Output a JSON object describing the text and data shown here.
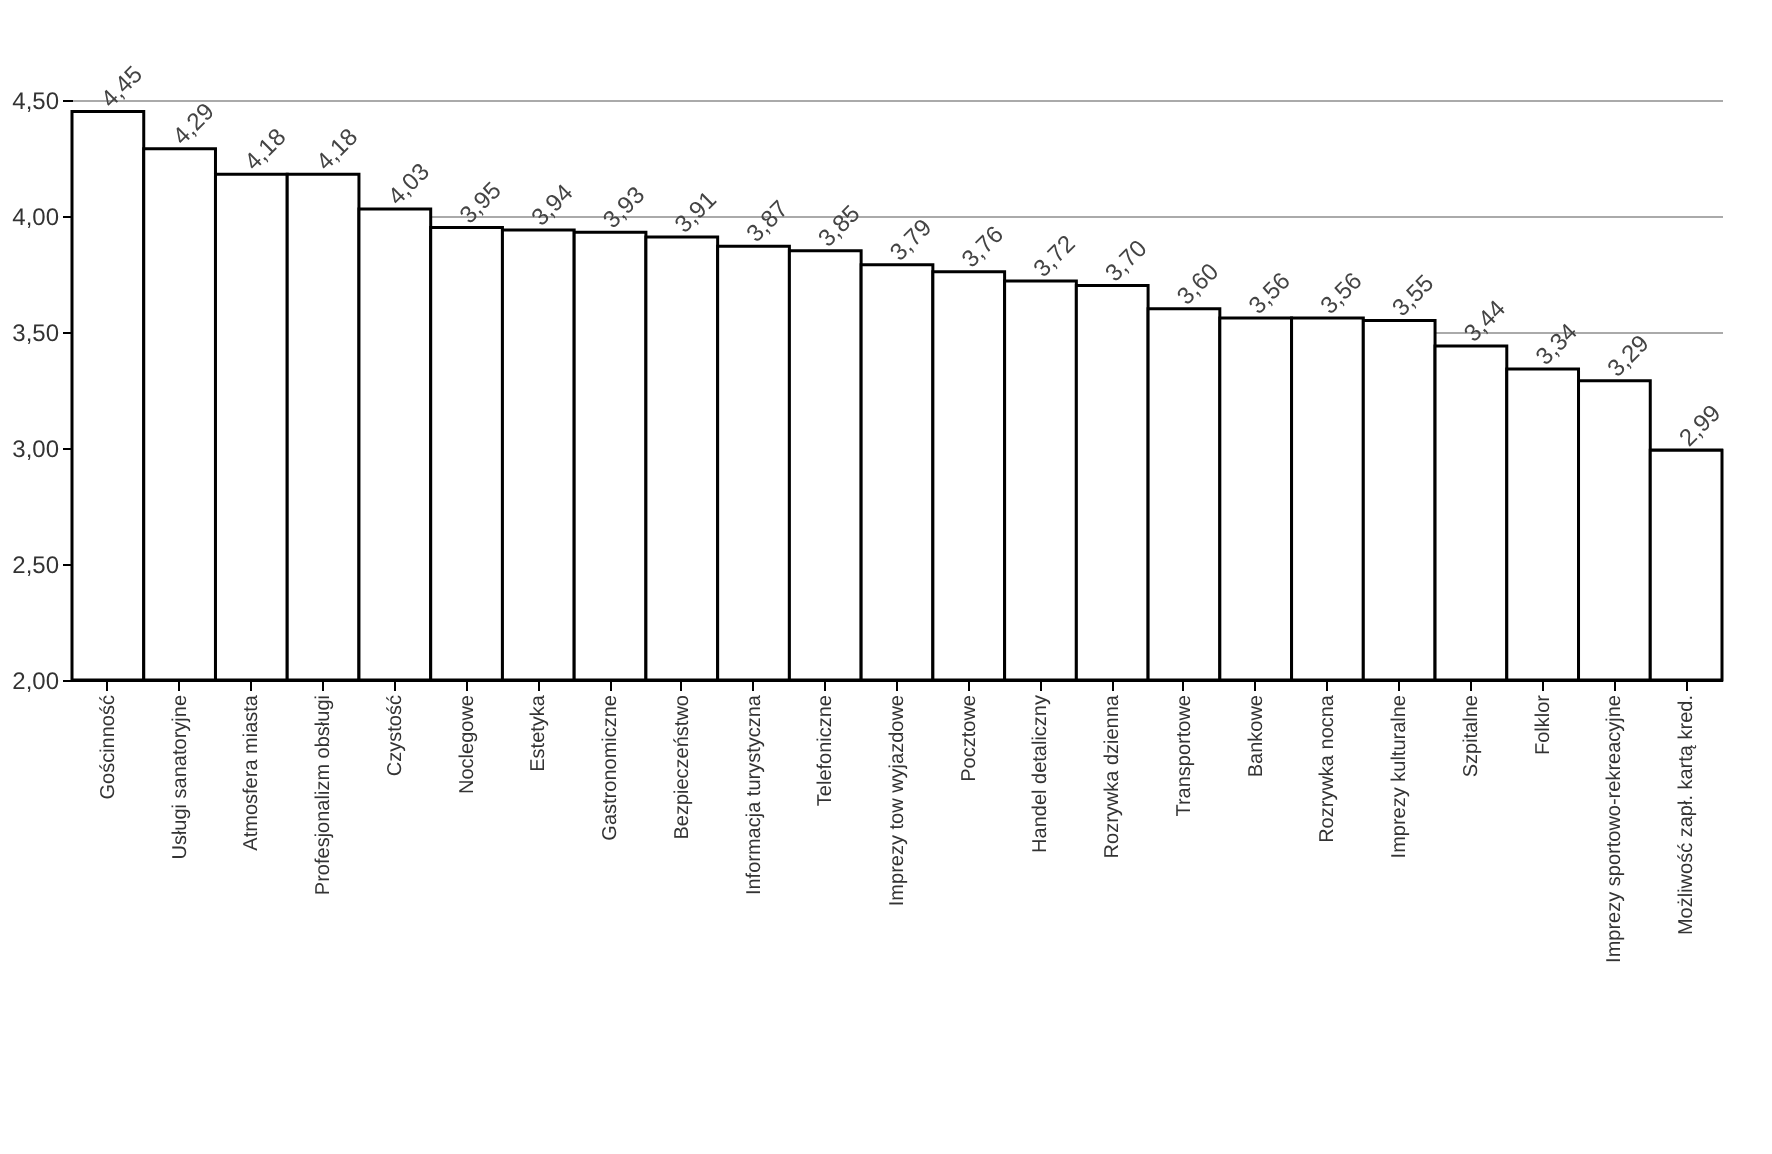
{
  "chart_data": {
    "type": "bar",
    "categories": [
      "Gościnność",
      "Usługi sanatoryjne",
      "Atmosfera miasta",
      "Profesjonalizm obsługi",
      "Czystość",
      "Noclegowe",
      "Estetyka",
      "Gastronomiczne",
      "Bezpieczeństwo",
      "Informacja turystyczna",
      "Telefoniczne",
      "Imprezy tow wyjazdowe",
      "Pocztowe",
      "Handel detaliczny",
      "Rozrywka dzienna",
      "Transportowe",
      "Bankowe",
      "Rozrywka nocna",
      "Imprezy kulturalne",
      "Szpitalne",
      "Folklor",
      "Imprezy sportowo-rekreacyjne",
      "Możliwość zapł. kartą kred."
    ],
    "values": [
      4.45,
      4.29,
      4.18,
      4.18,
      4.03,
      3.95,
      3.94,
      3.93,
      3.91,
      3.87,
      3.85,
      3.79,
      3.76,
      3.72,
      3.7,
      3.6,
      3.56,
      3.56,
      3.55,
      3.44,
      3.34,
      3.29,
      2.99
    ],
    "color": "#ffffff",
    "ylim": [
      2,
      4.5
    ],
    "yticks": [
      {
        "value": 2,
        "label": "2,00"
      },
      {
        "value": 2.5,
        "label": "2,50"
      },
      {
        "value": 3,
        "label": "3,00"
      },
      {
        "value": 3.5,
        "label": "3,50"
      },
      {
        "value": 4,
        "label": "4,00"
      },
      {
        "value": 4.5,
        "label": "4,50"
      }
    ],
    "value_labels": [
      "4,45",
      "4,29",
      "4,18",
      "4,18",
      "4,03",
      "3,95",
      "3,94",
      "3,93",
      "3,91",
      "3,87",
      "3,85",
      "3,79",
      "3,76",
      "3,72",
      "3,70",
      "3,60",
      "3,56",
      "3,56",
      "3,55",
      "3,44",
      "3,34",
      "3,29",
      "2,99"
    ],
    "grid": "y"
  }
}
